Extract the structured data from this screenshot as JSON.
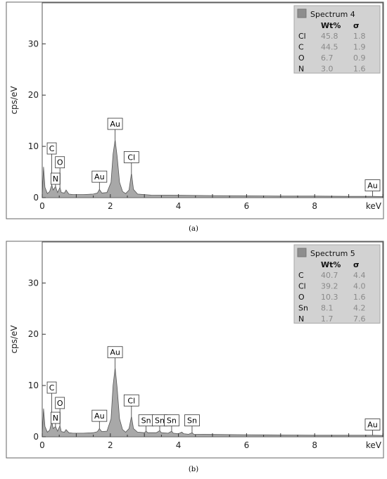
{
  "chart_data": [
    {
      "type": "area",
      "ylabel": "cps/eV",
      "xlabel": "keV",
      "xlim": [
        0,
        10
      ],
      "ylim": [
        0,
        38
      ],
      "xticks": [
        0,
        2,
        4,
        6,
        8
      ],
      "yticks": [
        0,
        10,
        20,
        30
      ],
      "grid": false,
      "fill_color": "#a8a8a8",
      "line_color": "#555555",
      "spectrum": [
        [
          0,
          0.3
        ],
        [
          0.04,
          6
        ],
        [
          0.08,
          2
        ],
        [
          0.15,
          0.8
        ],
        [
          0.22,
          1.2
        ],
        [
          0.28,
          2.5
        ],
        [
          0.32,
          1.5
        ],
        [
          0.39,
          2.2
        ],
        [
          0.45,
          1.0
        ],
        [
          0.52,
          2.0
        ],
        [
          0.56,
          1.0
        ],
        [
          0.65,
          0.9
        ],
        [
          0.7,
          1.5
        ],
        [
          0.78,
          0.7
        ],
        [
          0.9,
          0.6
        ],
        [
          1.2,
          0.6
        ],
        [
          1.5,
          0.7
        ],
        [
          1.62,
          0.9
        ],
        [
          1.68,
          1.6
        ],
        [
          1.75,
          0.9
        ],
        [
          1.9,
          1.0
        ],
        [
          2.02,
          3.0
        ],
        [
          2.08,
          8.5
        ],
        [
          2.14,
          11.3
        ],
        [
          2.2,
          8.0
        ],
        [
          2.27,
          3.0
        ],
        [
          2.36,
          1.2
        ],
        [
          2.45,
          0.8
        ],
        [
          2.55,
          1.5
        ],
        [
          2.62,
          4.8
        ],
        [
          2.68,
          1.6
        ],
        [
          2.8,
          0.7
        ],
        [
          3.2,
          0.5
        ],
        [
          4.0,
          0.45
        ],
        [
          5.0,
          0.4
        ],
        [
          6.0,
          0.35
        ],
        [
          7.0,
          0.3
        ],
        [
          8.0,
          0.3
        ],
        [
          9.0,
          0.25
        ],
        [
          9.7,
          0.25
        ],
        [
          10,
          0.2
        ]
      ],
      "labels": [
        {
          "text": "C",
          "x": 0.28,
          "peak": 2.5,
          "box_y": 8.5
        },
        {
          "text": "N",
          "x": 0.39,
          "peak": 2.2,
          "box_y": 2.6
        },
        {
          "text": "O",
          "x": 0.52,
          "peak": 2.0,
          "box_y": 5.8
        },
        {
          "text": "Au",
          "x": 1.68,
          "peak": 1.6,
          "box_y": 3.0
        },
        {
          "text": "Au",
          "x": 2.14,
          "peak": 11.3,
          "box_y": 13.3
        },
        {
          "text": "Cl",
          "x": 2.62,
          "peak": 4.8,
          "box_y": 6.8
        },
        {
          "text": "Au",
          "x": 9.7,
          "peak": 0.25,
          "box_y": 1.3
        }
      ],
      "legend": {
        "placement": "top-right",
        "title": "Spectrum 4",
        "headers": [
          "Wt%",
          "σ"
        ],
        "rows": [
          {
            "element": "Cl",
            "wt": "45.8",
            "sigma": "1.8"
          },
          {
            "element": "C",
            "wt": "44.5",
            "sigma": "1.9"
          },
          {
            "element": "O",
            "wt": "6.7",
            "sigma": "0.9"
          },
          {
            "element": "N",
            "wt": "3.0",
            "sigma": "1.6"
          }
        ]
      },
      "caption": "(a)"
    },
    {
      "type": "area",
      "ylabel": "cps/eV",
      "xlabel": "keV",
      "xlim": [
        0,
        10
      ],
      "ylim": [
        0,
        38
      ],
      "xticks": [
        0,
        2,
        4,
        6,
        8
      ],
      "yticks": [
        0,
        10,
        20,
        30
      ],
      "grid": false,
      "fill_color": "#a8a8a8",
      "line_color": "#555555",
      "spectrum": [
        [
          0,
          0.3
        ],
        [
          0.04,
          5.5
        ],
        [
          0.08,
          2
        ],
        [
          0.15,
          0.9
        ],
        [
          0.22,
          1.3
        ],
        [
          0.28,
          3.0
        ],
        [
          0.32,
          1.6
        ],
        [
          0.39,
          2.0
        ],
        [
          0.45,
          1.1
        ],
        [
          0.52,
          2.2
        ],
        [
          0.56,
          1.0
        ],
        [
          0.65,
          0.9
        ],
        [
          0.7,
          1.4
        ],
        [
          0.78,
          0.8
        ],
        [
          0.9,
          0.7
        ],
        [
          1.2,
          0.7
        ],
        [
          1.5,
          0.8
        ],
        [
          1.62,
          1.0
        ],
        [
          1.68,
          1.6
        ],
        [
          1.75,
          1.0
        ],
        [
          1.9,
          1.1
        ],
        [
          2.02,
          3.5
        ],
        [
          2.08,
          10.0
        ],
        [
          2.14,
          13.5
        ],
        [
          2.2,
          9.5
        ],
        [
          2.27,
          3.5
        ],
        [
          2.36,
          1.4
        ],
        [
          2.45,
          0.9
        ],
        [
          2.55,
          1.6
        ],
        [
          2.62,
          4.0
        ],
        [
          2.68,
          1.6
        ],
        [
          2.8,
          0.9
        ],
        [
          3.0,
          0.8
        ],
        [
          3.05,
          1.1
        ],
        [
          3.1,
          0.8
        ],
        [
          3.35,
          0.8
        ],
        [
          3.45,
          1.2
        ],
        [
          3.5,
          0.8
        ],
        [
          3.7,
          0.7
        ],
        [
          3.8,
          1.1
        ],
        [
          3.85,
          0.7
        ],
        [
          4.0,
          0.6
        ],
        [
          4.1,
          0.9
        ],
        [
          4.15,
          0.6
        ],
        [
          4.3,
          0.5
        ],
        [
          4.4,
          0.8
        ],
        [
          4.45,
          0.5
        ],
        [
          5.0,
          0.45
        ],
        [
          6.0,
          0.4
        ],
        [
          7.0,
          0.35
        ],
        [
          8.0,
          0.3
        ],
        [
          9.0,
          0.3
        ],
        [
          9.7,
          0.3
        ],
        [
          10,
          0.25
        ]
      ],
      "labels": [
        {
          "text": "C",
          "x": 0.28,
          "peak": 3.0,
          "box_y": 8.5
        },
        {
          "text": "N",
          "x": 0.39,
          "peak": 2.0,
          "box_y": 2.6
        },
        {
          "text": "O",
          "x": 0.52,
          "peak": 2.2,
          "box_y": 5.5
        },
        {
          "text": "Au",
          "x": 1.68,
          "peak": 1.6,
          "box_y": 3.0
        },
        {
          "text": "Au",
          "x": 2.14,
          "peak": 13.5,
          "box_y": 15.4
        },
        {
          "text": "Cl",
          "x": 2.62,
          "peak": 4.0,
          "box_y": 6.0
        },
        {
          "text": "Sn",
          "x": 3.05,
          "peak": 1.1,
          "box_y": 2.1
        },
        {
          "text": "Sn",
          "x": 3.45,
          "peak": 1.2,
          "box_y": 2.1
        },
        {
          "text": "Sn",
          "x": 3.8,
          "peak": 1.1,
          "box_y": 2.1
        },
        {
          "text": "Sn",
          "x": 4.4,
          "peak": 0.8,
          "box_y": 2.1
        },
        {
          "text": "Au",
          "x": 9.7,
          "peak": 0.3,
          "box_y": 1.3
        }
      ],
      "legend": {
        "placement": "top-right",
        "title": "Spectrum 5",
        "headers": [
          "Wt%",
          "σ"
        ],
        "rows": [
          {
            "element": "C",
            "wt": "40.7",
            "sigma": "4.4"
          },
          {
            "element": "Cl",
            "wt": "39.2",
            "sigma": "4.0"
          },
          {
            "element": "O",
            "wt": "10.3",
            "sigma": "1.6"
          },
          {
            "element": "Sn",
            "wt": "8.1",
            "sigma": "4.2"
          },
          {
            "element": "N",
            "wt": "1.7",
            "sigma": "7.6"
          }
        ]
      },
      "caption": "(b)"
    }
  ]
}
